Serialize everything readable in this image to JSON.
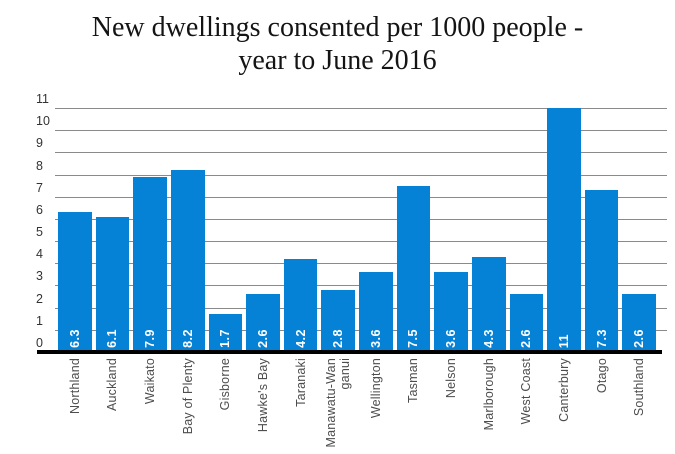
{
  "title": {
    "line1": "New dwellings consented per 1000 people -",
    "line2": "year to June 2016",
    "full": "New dwellings consented per 1000 people - year to June 2016"
  },
  "chart_data": {
    "type": "bar",
    "title": "New dwellings consented per 1000 people - year to June 2016",
    "categories": [
      "Northland",
      "Auckland",
      "Waikato",
      "Bay of Plenty",
      "Gisborne",
      "Hawke's Bay",
      "Taranaki",
      "Manawatu-Wanganui",
      "Wellington",
      "Tasman",
      "Nelson",
      "Marlborough",
      "West Coast",
      "Canterbury",
      "Otago",
      "Southland"
    ],
    "display_labels": [
      "Northland",
      "Auckland",
      "Waikato",
      "Bay of Plenty",
      "Gisborne",
      "Hawke's Bay",
      "Taranaki",
      [
        "Manawatu-Wan",
        "ganui"
      ],
      "Wellington",
      "Tasman",
      "Nelson",
      "Marlborough",
      "West Coast",
      "Canterbury",
      "Otago",
      "Southland"
    ],
    "values": [
      6.3,
      6.1,
      7.9,
      8.2,
      1.7,
      2.6,
      4.2,
      2.8,
      3.6,
      7.5,
      3.6,
      4.3,
      2.6,
      11,
      7.3,
      2.6
    ],
    "value_labels": [
      "6.3",
      "6.1",
      "7.9",
      "8.2",
      "1.7",
      "2.6",
      "4.2",
      "2.8",
      "3.6",
      "7.5",
      "3.6",
      "4.3",
      "2.6",
      "11",
      "7.3",
      "2.6"
    ],
    "xlabel": "",
    "ylabel": "",
    "ylim": [
      0,
      11
    ],
    "yticks": [
      0,
      1,
      2,
      3,
      4,
      5,
      6,
      7,
      8,
      9,
      10,
      11
    ],
    "grid": true,
    "legend": "none",
    "bar_color": "#0582d6",
    "gridline_color": "#8a8a8a",
    "axis_color": "#000000",
    "value_label_color": "#ffffff",
    "x_label_color": "#4d4d4d",
    "y_label_color": "#333333"
  }
}
